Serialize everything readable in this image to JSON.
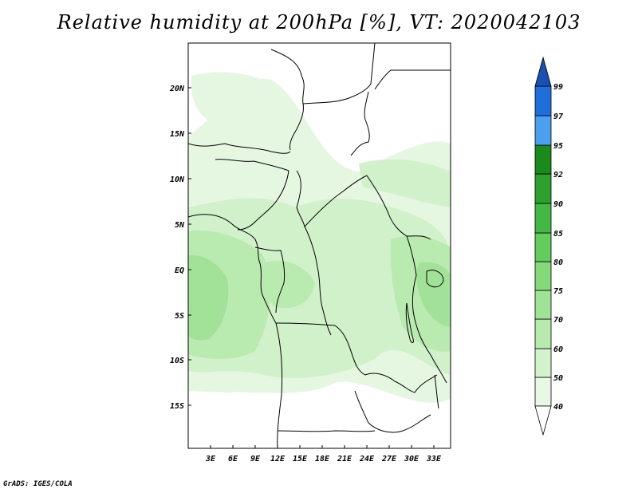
{
  "title": "Relative humidity at 200hPa [%], VT: 2020042103",
  "credit": "GrADS: IGES/COLA",
  "map": {
    "lat_labels": [
      "20N",
      "15N",
      "10N",
      "5N",
      "EQ",
      "5S",
      "10S",
      "15S"
    ],
    "lon_labels": [
      "3E",
      "6E",
      "9E",
      "12E",
      "15E",
      "18E",
      "21E",
      "24E",
      "27E",
      "30E",
      "33E"
    ]
  },
  "colorbar": {
    "labels": [
      "40",
      "50",
      "60",
      "70",
      "75",
      "80",
      "85",
      "90",
      "92",
      "95",
      "97",
      "99"
    ],
    "colors": [
      "#ffffff",
      "#e8f8e4",
      "#d2f2cc",
      "#b8eaae",
      "#a0e296",
      "#84d978",
      "#62cc5c",
      "#44b844",
      "#2ea02e",
      "#1a8a1a",
      "#4a9ff0",
      "#1e6fdc",
      "#1a4fb4"
    ]
  }
}
